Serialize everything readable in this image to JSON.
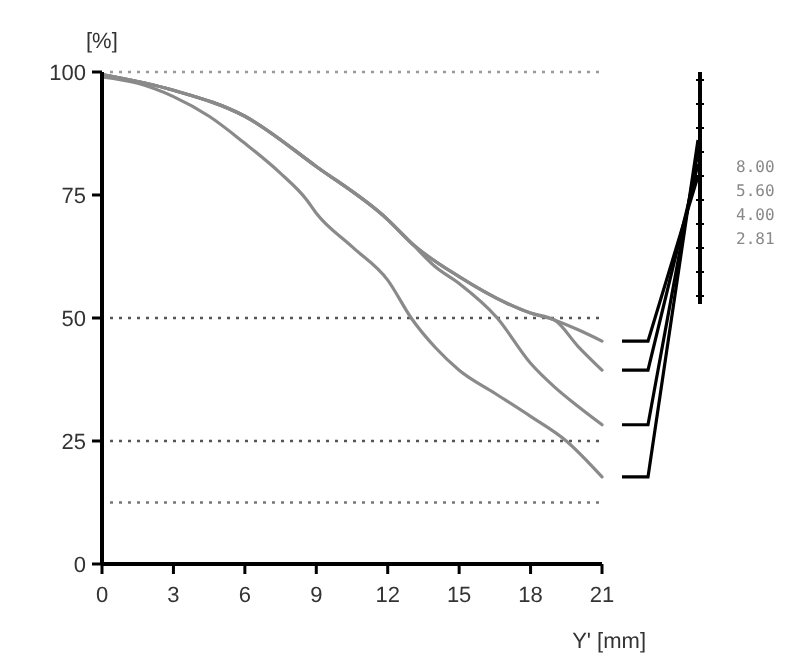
{
  "chart_data": {
    "type": "line",
    "ylabel": "[%]",
    "xlabel": "Y' [mm]",
    "xlim": [
      0,
      21
    ],
    "xticks": [
      0,
      3,
      6,
      9,
      12,
      15,
      18,
      21
    ],
    "ylim": [
      0,
      100
    ],
    "yticks": [
      0,
      25,
      50,
      75,
      100
    ],
    "legend": "right",
    "grid": false,
    "marker": "none",
    "line_style": "solid",
    "ref_lines": [
      {
        "axis": "y",
        "value": 100,
        "line_style": "dotted",
        "color": "#999999"
      },
      {
        "axis": "y",
        "value": 50,
        "line_style": "dotted",
        "color": "#555555"
      },
      {
        "axis": "y",
        "value": 25,
        "line_style": "dotted",
        "color": "#555555"
      },
      {
        "axis": "y",
        "value": 12.5,
        "line_style": "dotted",
        "color": "#777777"
      }
    ],
    "series": [
      {
        "name": "8.00",
        "color": "#8a8a8a",
        "x": [
          0,
          3,
          6,
          9,
          12,
          13,
          15,
          17,
          18,
          19,
          20,
          21
        ],
        "values": [
          99.5,
          96.3,
          91,
          80.8,
          70,
          65.2,
          58.4,
          53,
          51,
          49.6,
          47.6,
          45.3
        ]
      },
      {
        "name": "5.60",
        "color": "#8a8a8a",
        "x": [
          0,
          3,
          6,
          9,
          12,
          13,
          15,
          17,
          18,
          19,
          20,
          21
        ],
        "values": [
          99.5,
          96.3,
          91,
          80.8,
          70,
          65.2,
          58.4,
          53,
          51,
          49.6,
          44.2,
          39.4
        ]
      },
      {
        "name": "4.00",
        "color": "#8a8a8a",
        "x": [
          0,
          3,
          6,
          9,
          12,
          13,
          14,
          15,
          16.6,
          18,
          19,
          20,
          21
        ],
        "values": [
          99.5,
          96.3,
          91,
          80.8,
          70,
          65.2,
          60.4,
          57,
          50,
          40.8,
          36,
          32,
          28.3
        ]
      },
      {
        "name": "2.81",
        "color": "#8a8a8a",
        "x": [
          0,
          1.5,
          3,
          4.5,
          6,
          7.5,
          8.6,
          9,
          10.5,
          12,
          13,
          14,
          15,
          16.5,
          18,
          19.5,
          21
        ],
        "values": [
          99,
          97.7,
          95,
          91,
          85.5,
          79.4,
          74,
          71.3,
          64.5,
          57.7,
          49.9,
          44,
          39.4,
          34.7,
          30,
          25,
          17.7
        ]
      }
    ]
  }
}
